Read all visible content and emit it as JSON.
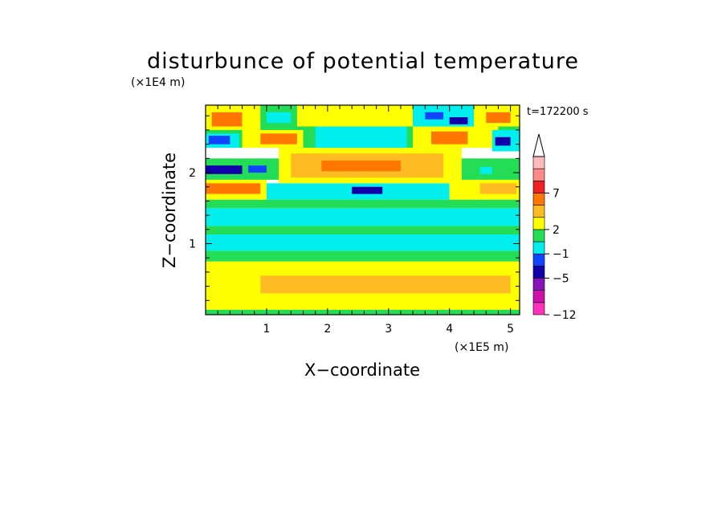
{
  "chart_data": {
    "type": "heatmap",
    "title": "disturbunce of potential temperature",
    "xlabel": "X−coordinate",
    "ylabel": "Z−coordinate",
    "x_unit": "(×1E5 m)",
    "y_unit": "(×1E4 m)",
    "time_label": "t=172200 s",
    "xlim": [
      0,
      5.15
    ],
    "ylim": [
      0,
      2.95
    ],
    "x_ticks": [
      {
        "value": 1,
        "label": "1"
      },
      {
        "value": 2,
        "label": "2"
      },
      {
        "value": 3,
        "label": "3"
      },
      {
        "value": 4,
        "label": "4"
      },
      {
        "value": 5,
        "label": "5"
      }
    ],
    "y_ticks": [
      {
        "value": 1,
        "label": "1"
      },
      {
        "value": 2,
        "label": "2"
      }
    ],
    "colorbar": {
      "levels": [
        {
          "color": "#ff33bb",
          "label": "−12"
        },
        {
          "color": "#cc11aa",
          "label": ""
        },
        {
          "color": "#8811bb",
          "label": ""
        },
        {
          "color": "#1100aa",
          "label": "−5"
        },
        {
          "color": "#1144ff",
          "label": ""
        },
        {
          "color": "#00eeee",
          "label": "−1"
        },
        {
          "color": "#22dd55",
          "label": ""
        },
        {
          "color": "#ffff00",
          "label": "2"
        },
        {
          "color": "#ffbb22",
          "label": ""
        },
        {
          "color": "#ff7700",
          "label": ""
        },
        {
          "color": "#ee2222",
          "label": "7"
        },
        {
          "color": "#ff8888",
          "label": ""
        },
        {
          "color": "#ffbbbb",
          "label": ""
        }
      ],
      "extend_top": true
    },
    "regions": [
      {
        "x0": 0,
        "x1": 5.15,
        "z0": 0,
        "z1": 0.07,
        "color": "#22dd55"
      },
      {
        "x0": 0,
        "x1": 5.15,
        "z0": 0.07,
        "z1": 0.75,
        "color": "#ffff00"
      },
      {
        "x0": 0.9,
        "x1": 5.0,
        "z0": 0.3,
        "z1": 0.55,
        "color": "#ffbb22"
      },
      {
        "x0": 0,
        "x1": 5.15,
        "z0": 0.75,
        "z1": 0.9,
        "color": "#22dd55"
      },
      {
        "x0": 0,
        "x1": 5.15,
        "z0": 0.9,
        "z1": 1.13,
        "color": "#00eeee"
      },
      {
        "x0": 0,
        "x1": 5.15,
        "z0": 1.13,
        "z1": 1.25,
        "color": "#22dd55"
      },
      {
        "x0": 0,
        "x1": 5.15,
        "z0": 1.25,
        "z1": 1.5,
        "color": "#00eeee"
      },
      {
        "x0": 0,
        "x1": 5.15,
        "z0": 1.5,
        "z1": 1.62,
        "color": "#22dd55"
      },
      {
        "x0": 1.0,
        "x1": 4.0,
        "z0": 1.62,
        "z1": 1.85,
        "color": "#00eeee"
      },
      {
        "x0": 0,
        "x1": 1.0,
        "z0": 1.62,
        "z1": 1.9,
        "color": "#ffff00"
      },
      {
        "x0": 0,
        "x1": 0.9,
        "z0": 1.7,
        "z1": 1.85,
        "color": "#ff7700"
      },
      {
        "x0": 4.0,
        "x1": 5.15,
        "z0": 1.62,
        "z1": 1.9,
        "color": "#ffff00"
      },
      {
        "x0": 4.5,
        "x1": 5.1,
        "z0": 1.7,
        "z1": 1.85,
        "color": "#ffbb22"
      },
      {
        "x0": 1.2,
        "x1": 4.2,
        "z0": 1.85,
        "z1": 2.35,
        "color": "#ffff00"
      },
      {
        "x0": 1.4,
        "x1": 3.9,
        "z0": 1.93,
        "z1": 2.27,
        "color": "#ffbb22"
      },
      {
        "x0": 1.9,
        "x1": 3.2,
        "z0": 2.02,
        "z1": 2.17,
        "color": "#ff7700"
      },
      {
        "x0": 0,
        "x1": 1.2,
        "z0": 1.9,
        "z1": 2.2,
        "color": "#22dd55"
      },
      {
        "x0": 0,
        "x1": 0.6,
        "z0": 1.98,
        "z1": 2.1,
        "color": "#1100aa"
      },
      {
        "x0": 0.7,
        "x1": 1.0,
        "z0": 2.0,
        "z1": 2.1,
        "color": "#1144ff"
      },
      {
        "x0": 2.4,
        "x1": 2.9,
        "z0": 1.7,
        "z1": 1.8,
        "color": "#1100aa"
      },
      {
        "x0": 4.2,
        "x1": 5.15,
        "z0": 1.9,
        "z1": 2.2,
        "color": "#22dd55"
      },
      {
        "x0": 4.5,
        "x1": 4.7,
        "z0": 1.98,
        "z1": 2.08,
        "color": "#00eeee"
      },
      {
        "x0": 0,
        "x1": 5.15,
        "z0": 2.35,
        "z1": 2.95,
        "color": "#22dd55"
      },
      {
        "x0": 0.6,
        "x1": 1.6,
        "z0": 2.35,
        "z1": 2.6,
        "color": "#ffff00"
      },
      {
        "x0": 0.9,
        "x1": 1.5,
        "z0": 2.4,
        "z1": 2.55,
        "color": "#ff7700"
      },
      {
        "x0": 0,
        "x1": 0.55,
        "z0": 2.35,
        "z1": 2.55,
        "color": "#00eeee"
      },
      {
        "x0": 0.05,
        "x1": 0.4,
        "z0": 2.4,
        "z1": 2.52,
        "color": "#1144ff"
      },
      {
        "x0": 1.8,
        "x1": 3.3,
        "z0": 2.35,
        "z1": 2.65,
        "color": "#00eeee"
      },
      {
        "x0": 3.4,
        "x1": 4.8,
        "z0": 2.35,
        "z1": 2.65,
        "color": "#ffff00"
      },
      {
        "x0": 3.7,
        "x1": 4.3,
        "z0": 2.4,
        "z1": 2.58,
        "color": "#ff7700"
      },
      {
        "x0": 4.7,
        "x1": 5.15,
        "z0": 2.3,
        "z1": 2.6,
        "color": "#00eeee"
      },
      {
        "x0": 4.75,
        "x1": 5.0,
        "z0": 2.38,
        "z1": 2.5,
        "color": "#1100aa"
      },
      {
        "x0": 0,
        "x1": 0.9,
        "z0": 2.6,
        "z1": 2.95,
        "color": "#ffff00"
      },
      {
        "x0": 0.1,
        "x1": 0.6,
        "z0": 2.65,
        "z1": 2.85,
        "color": "#ff7700"
      },
      {
        "x0": 0.9,
        "x1": 1.5,
        "z0": 2.65,
        "z1": 2.95,
        "color": "#22dd55"
      },
      {
        "x0": 1.0,
        "x1": 1.4,
        "z0": 2.7,
        "z1": 2.85,
        "color": "#00eeee"
      },
      {
        "x0": 1.5,
        "x1": 3.4,
        "z0": 2.65,
        "z1": 2.95,
        "color": "#ffff00"
      },
      {
        "x0": 3.4,
        "x1": 4.4,
        "z0": 2.65,
        "z1": 2.95,
        "color": "#00eeee"
      },
      {
        "x0": 3.6,
        "x1": 3.9,
        "z0": 2.75,
        "z1": 2.85,
        "color": "#1144ff"
      },
      {
        "x0": 4.0,
        "x1": 4.3,
        "z0": 2.68,
        "z1": 2.78,
        "color": "#1100aa"
      },
      {
        "x0": 4.4,
        "x1": 5.15,
        "z0": 2.65,
        "z1": 2.95,
        "color": "#ffff00"
      },
      {
        "x0": 4.6,
        "x1": 5.0,
        "z0": 2.7,
        "z1": 2.85,
        "color": "#ff7700"
      }
    ]
  }
}
